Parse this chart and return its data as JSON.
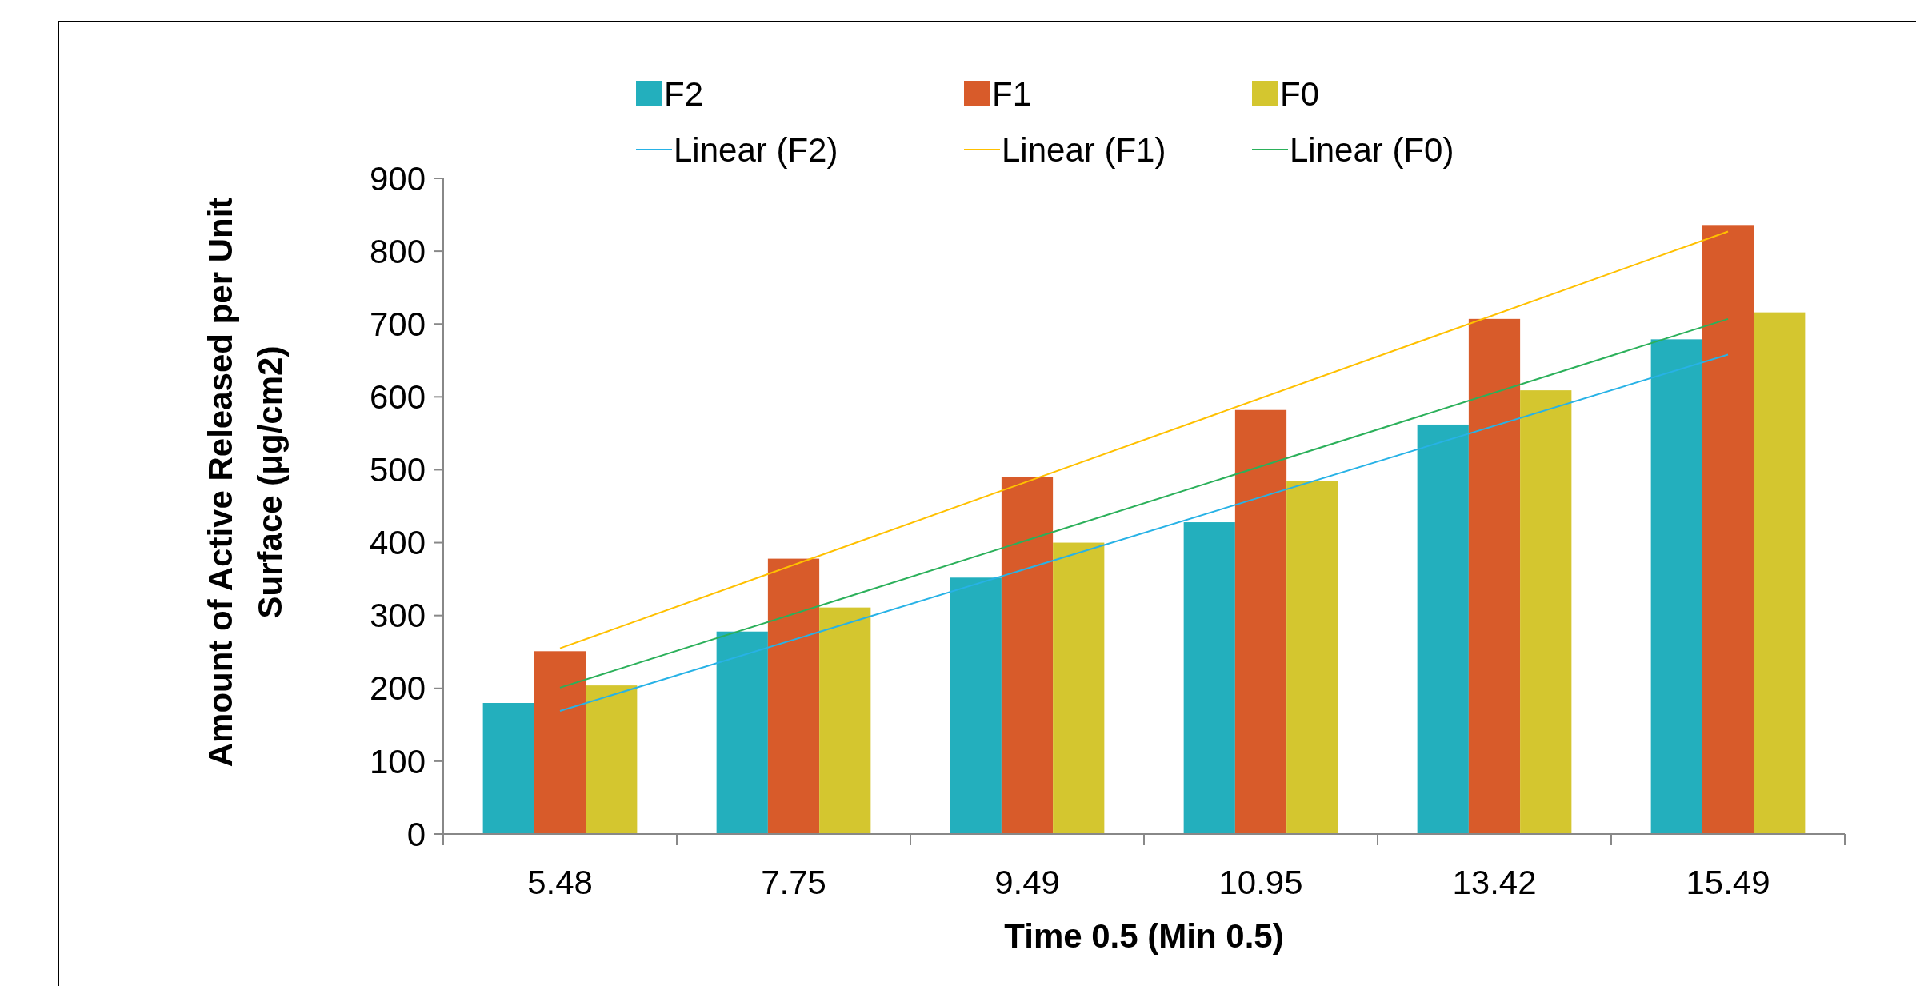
{
  "chart_data": {
    "type": "bar",
    "xlabel": "Time 0.5 (Min 0.5)",
    "ylabel": "Amount of Active Released per Unit Surface (μg/cm2)",
    "categories": [
      "5.48",
      "7.75",
      "9.49",
      "10.95",
      "13.42",
      "15.49"
    ],
    "series": [
      {
        "name": "F2",
        "color": "#23afbd",
        "values": [
          180,
          278,
          352,
          428,
          562,
          679
        ]
      },
      {
        "name": "F1",
        "color": "#d85b2a",
        "values": [
          251,
          378,
          490,
          582,
          707,
          836
        ]
      },
      {
        "name": "F0",
        "color": "#d4c62f",
        "values": [
          204,
          311,
          400,
          485,
          609,
          716
        ]
      },
      {
        "name": "Linear (F2)",
        "type": "line",
        "color": "#27b2e6",
        "x": [
          "5.48",
          "15.49"
        ],
        "values": [
          169,
          658
        ]
      },
      {
        "name": "Linear (F1)",
        "type": "line",
        "color": "#ffc000",
        "x": [
          "5.48",
          "15.49"
        ],
        "values": [
          255,
          827
        ]
      },
      {
        "name": "Linear (F0)",
        "type": "line",
        "color": "#2bb05a",
        "x": [
          "5.48",
          "15.49"
        ],
        "values": [
          201,
          707
        ]
      }
    ],
    "ylim": [
      0,
      900
    ],
    "yticks": [
      0,
      100,
      200,
      300,
      400,
      500,
      600,
      700,
      800,
      900
    ],
    "grid": false,
    "legend": "top"
  }
}
